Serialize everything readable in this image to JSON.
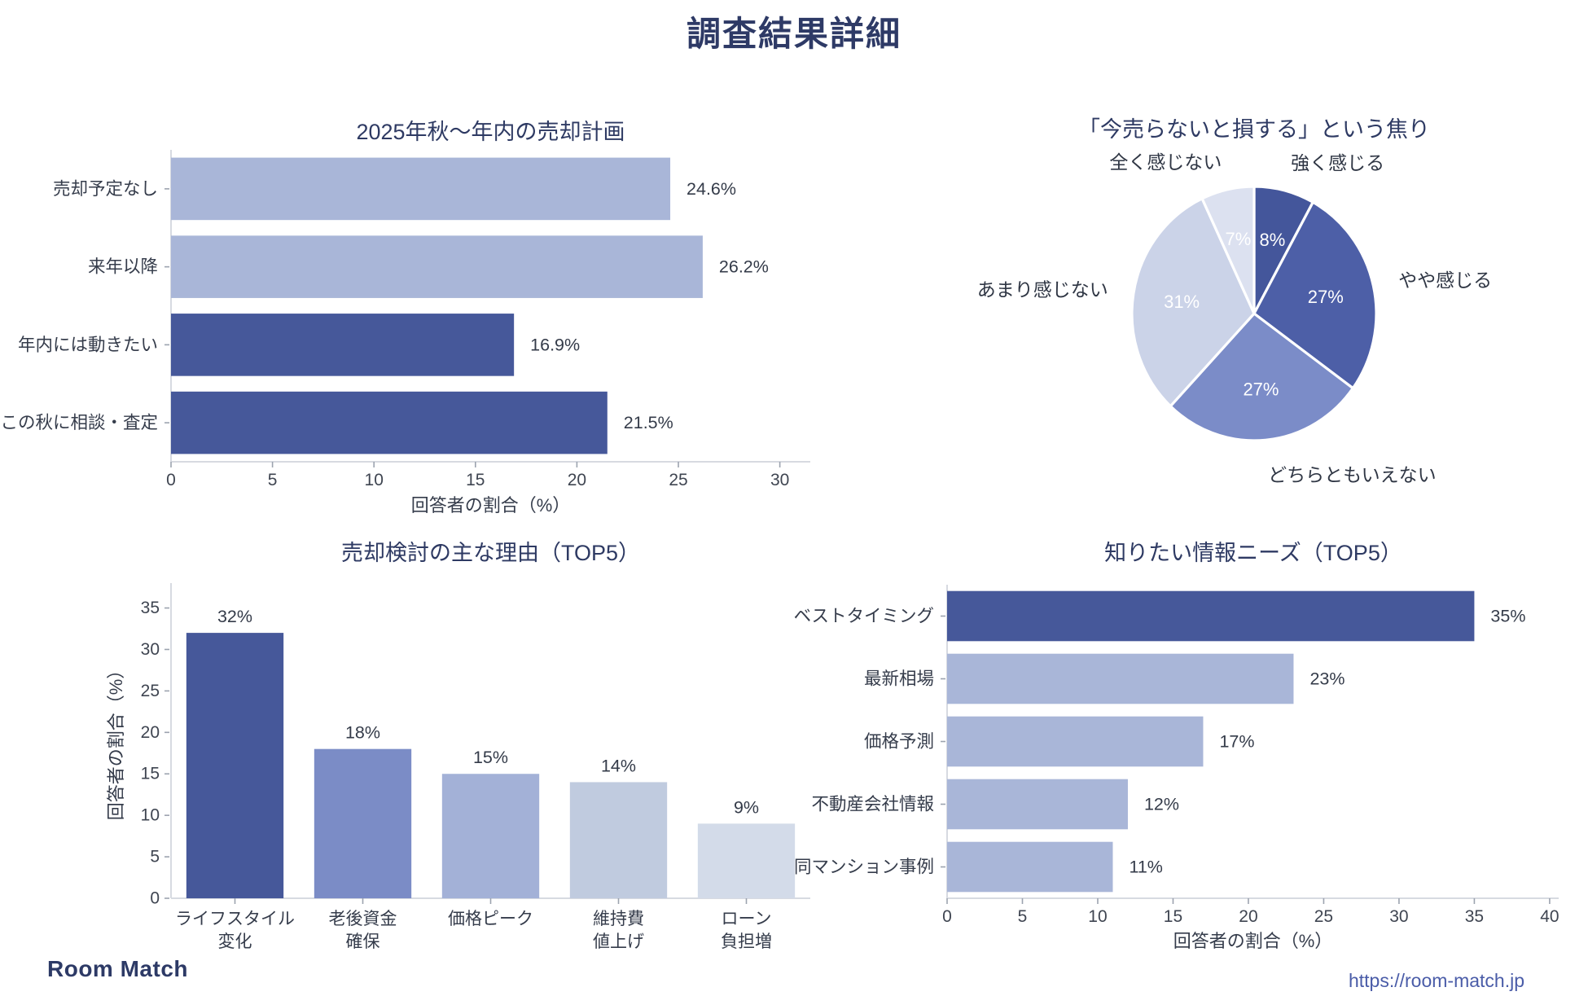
{
  "page_title": "調査結果詳細",
  "footer": {
    "logo": "Room Match",
    "url": "https://room-match.jp"
  },
  "colors": {
    "dark_blue": "#46589A",
    "light_blue": "#A9B6D8",
    "title_text": "#2E3A63",
    "label_text": "#353C4B",
    "spine": "#D7DAE1"
  },
  "chart_data": [
    {
      "id": "sale-plan",
      "type": "bar",
      "orientation": "horizontal",
      "title": "2025年秋〜年内の売却計画",
      "xlabel": "回答者の割合（%）",
      "categories": [
        "売却予定なし",
        "来年以降",
        "年内には動きたい",
        "この秋に相談・査定"
      ],
      "values": [
        24.6,
        26.2,
        16.9,
        21.5
      ],
      "value_labels": [
        "24.6%",
        "26.2%",
        "16.9%",
        "21.5%"
      ],
      "bar_colors": [
        "#A9B6D8",
        "#A9B6D8",
        "#46589A",
        "#46589A"
      ],
      "xticks": [
        0,
        5,
        10,
        15,
        20,
        25,
        30
      ],
      "xlim": [
        0,
        31.5
      ],
      "grid": false,
      "legend": "none"
    },
    {
      "id": "urgency",
      "type": "pie",
      "title": "「今売らないと損する」という焦り",
      "labels": [
        "強く感じる",
        "やや感じる",
        "どちらともいえない",
        "あまり感じない",
        "全く感じない"
      ],
      "values": [
        8,
        27,
        27,
        31,
        7
      ],
      "pct_labels": [
        "8%",
        "27%",
        "27%",
        "31%",
        "7%"
      ],
      "slice_colors": [
        "#44569B",
        "#4D5FA7",
        "#7B8CC8",
        "#CBD3E8",
        "#DCE1F0"
      ],
      "start_angle": "top",
      "direction": "clockwise",
      "legend": "none"
    },
    {
      "id": "sell-reasons",
      "type": "bar",
      "orientation": "vertical",
      "title": "売却検討の主な理由（TOP5）",
      "ylabel": "回答者の割合（%）",
      "categories": [
        [
          "ライフスタイル",
          "変化"
        ],
        [
          "老後資金",
          "確保"
        ],
        [
          "価格ピーク"
        ],
        [
          "維持費",
          "値上げ"
        ],
        [
          "ローン",
          "負担増"
        ]
      ],
      "values": [
        32,
        18,
        15,
        14,
        9
      ],
      "value_labels": [
        "32%",
        "18%",
        "15%",
        "14%",
        "9%"
      ],
      "bar_colors": [
        "#46589A",
        "#7B8CC6",
        "#A3B1D7",
        "#C0CBDF",
        "#D3DBE9"
      ],
      "yticks": [
        0,
        5,
        10,
        15,
        20,
        25,
        30,
        35
      ],
      "ylim": [
        0,
        38
      ],
      "grid": false,
      "legend": "none"
    },
    {
      "id": "info-needs",
      "type": "bar",
      "orientation": "horizontal",
      "title": "知りたい情報ニーズ（TOP5）",
      "xlabel": "回答者の割合（%）",
      "categories": [
        "ベストタイミング",
        "最新相場",
        "価格予測",
        "不動産会社情報",
        "同マンション事例"
      ],
      "values": [
        35,
        23,
        17,
        12,
        11
      ],
      "value_labels": [
        "35%",
        "23%",
        "17%",
        "12%",
        "11%"
      ],
      "bar_colors": [
        "#46589A",
        "#A9B6D8",
        "#A9B6D8",
        "#A9B6D8",
        "#A9B6D8"
      ],
      "xticks": [
        0,
        5,
        10,
        15,
        20,
        25,
        30,
        35,
        40
      ],
      "xlim": [
        0,
        40.6
      ],
      "grid": false,
      "legend": "none"
    }
  ]
}
